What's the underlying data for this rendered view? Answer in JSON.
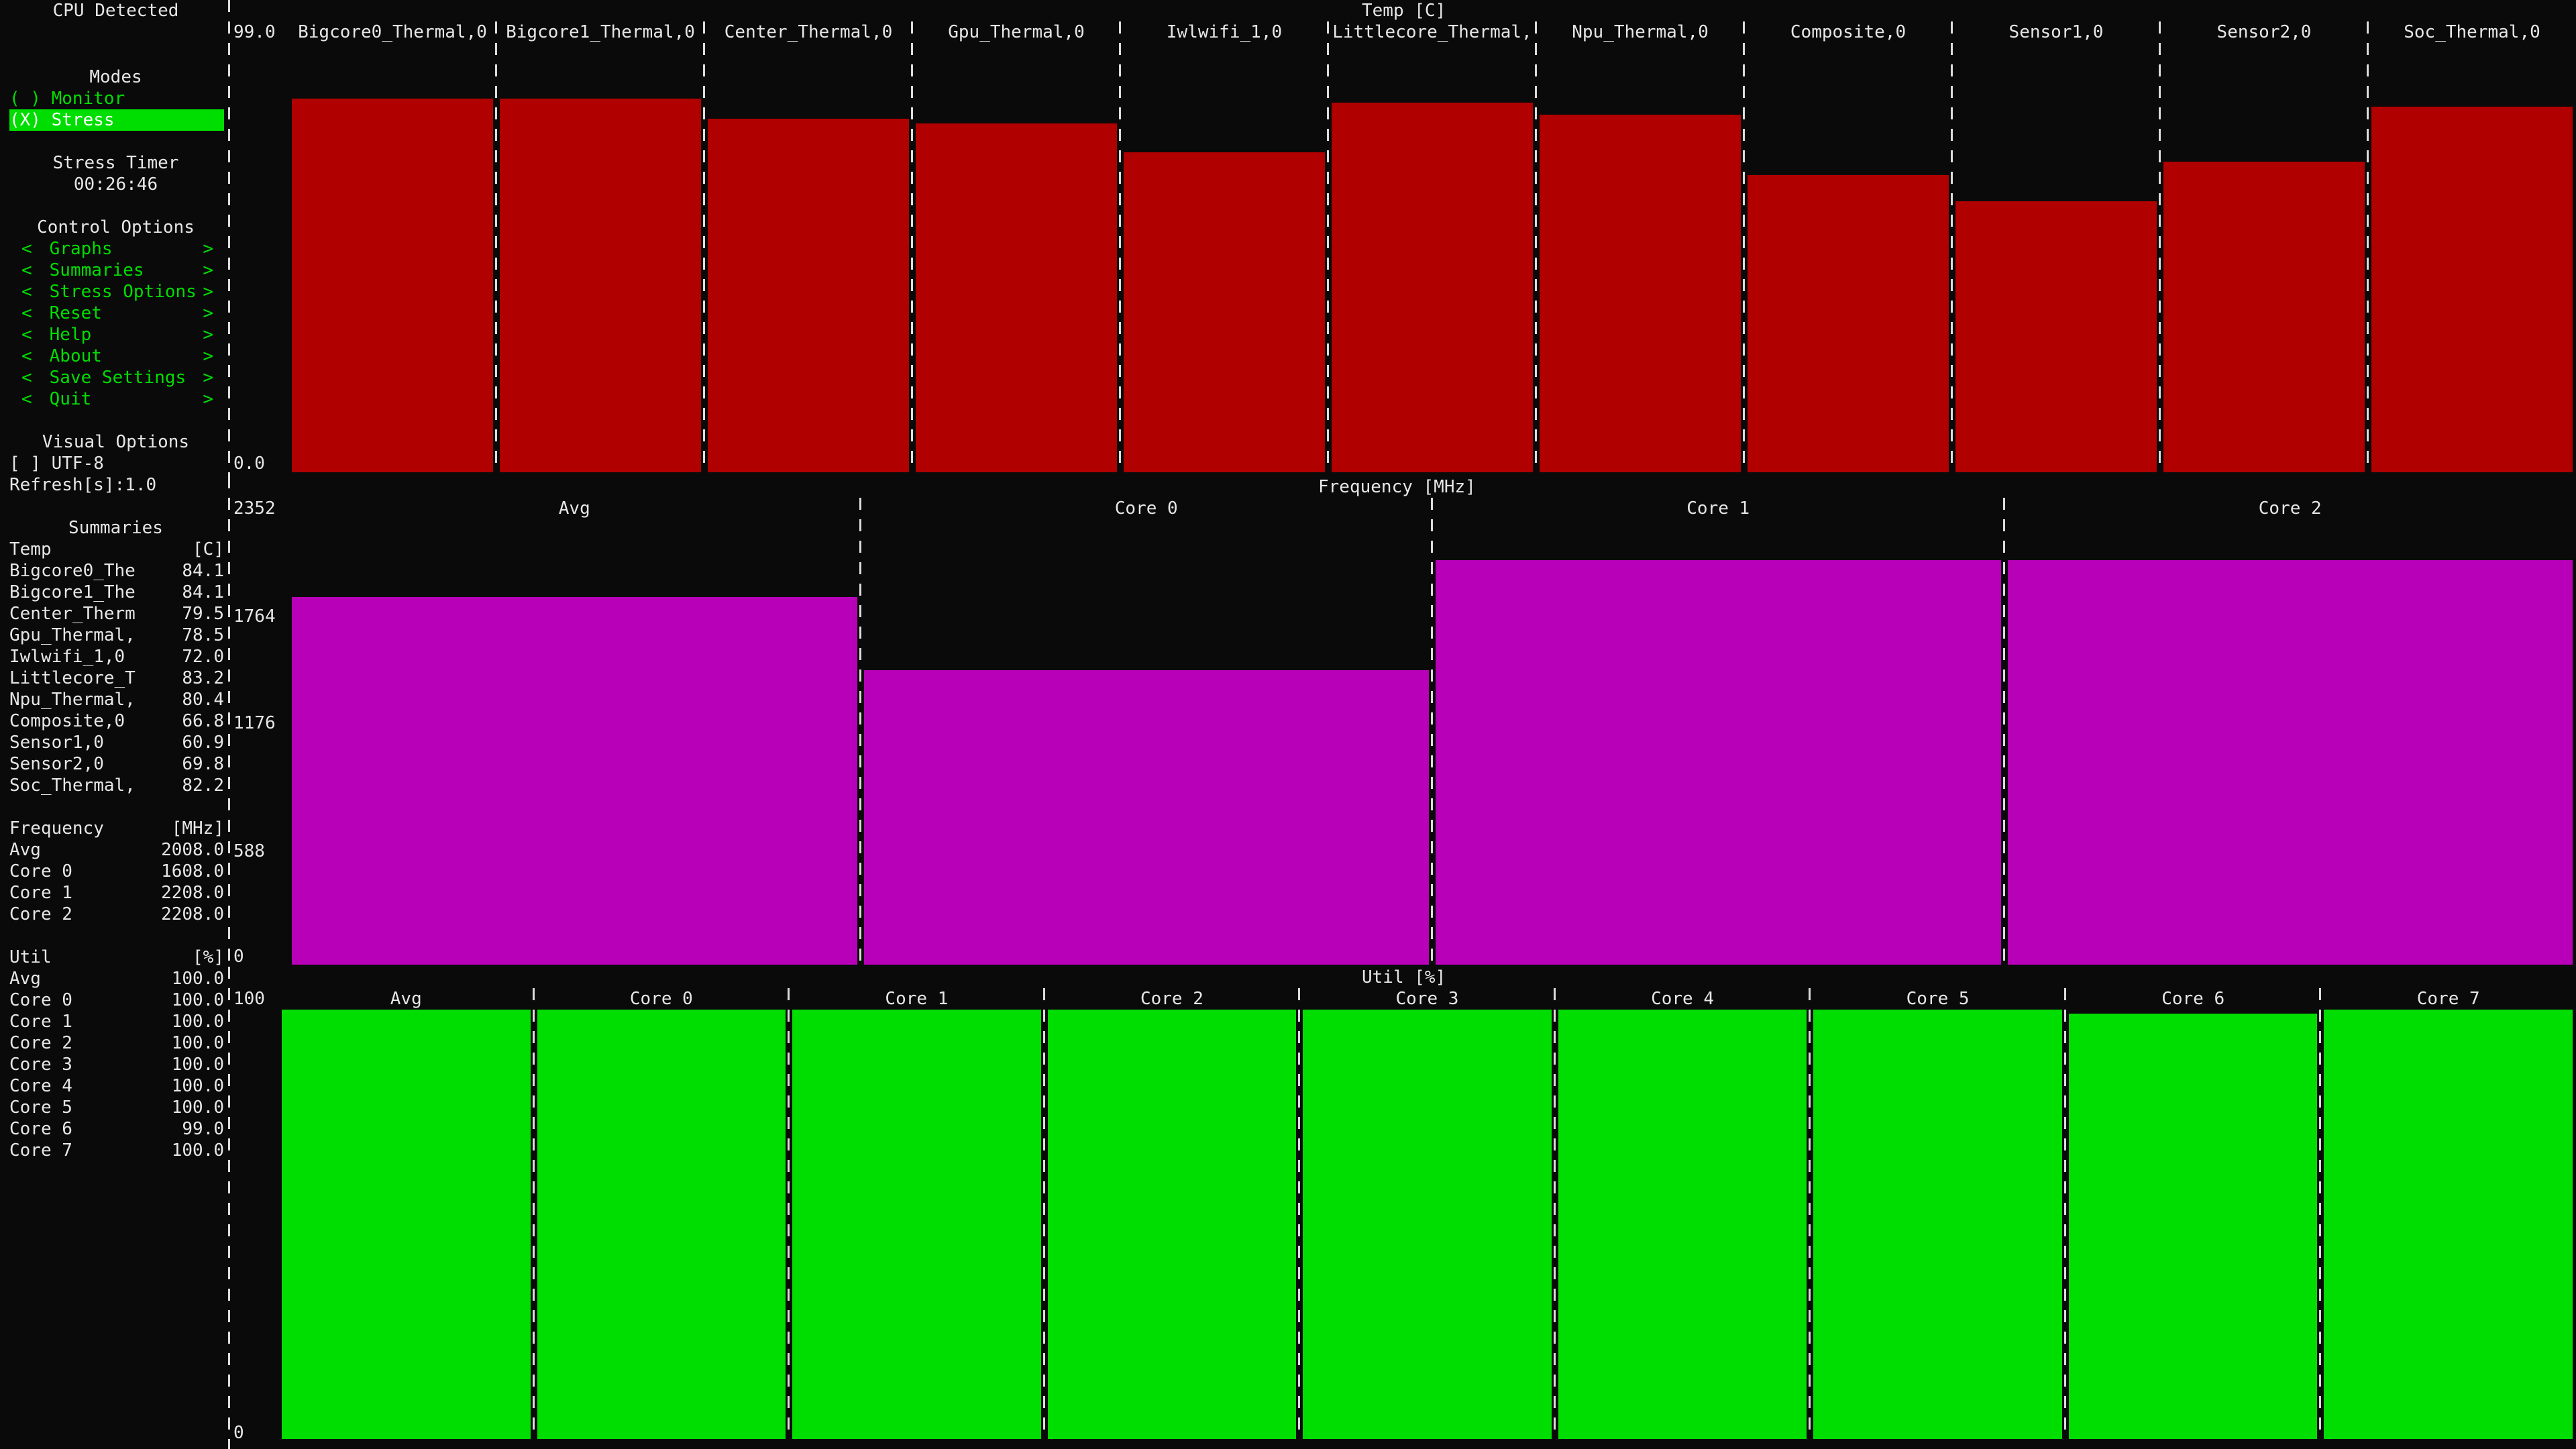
{
  "sidebar": {
    "cpu_detected": "CPU Detected",
    "modes_title": "Modes",
    "modes": [
      {
        "label": "( ) Monitor",
        "selected": false
      },
      {
        "label": "(X) Stress",
        "selected": true
      }
    ],
    "stress_timer_title": "Stress Timer",
    "stress_timer_value": "00:26:46",
    "control_title": "Control Options",
    "control_items": [
      "Graphs",
      "Summaries",
      "Stress Options",
      "Reset",
      "Help",
      "About",
      "Save Settings",
      "Quit"
    ],
    "menu_left": "<",
    "menu_right": ">",
    "visual_title": "Visual Options",
    "utf8": "[ ] UTF-8",
    "refresh": "Refresh[s]:1.0",
    "summaries_title": "Summaries",
    "temp_header": {
      "name": "Temp",
      "unit": "[C]"
    },
    "temp_rows": [
      {
        "name": "Bigcore0_The",
        "value": "84.1"
      },
      {
        "name": "Bigcore1_The",
        "value": "84.1"
      },
      {
        "name": "Center_Therm",
        "value": "79.5"
      },
      {
        "name": "Gpu_Thermal,",
        "value": "78.5"
      },
      {
        "name": "Iwlwifi_1,0",
        "value": "72.0"
      },
      {
        "name": "Littlecore_T",
        "value": "83.2"
      },
      {
        "name": "Npu_Thermal,",
        "value": "80.4"
      },
      {
        "name": "Composite,0",
        "value": "66.8"
      },
      {
        "name": "Sensor1,0",
        "value": "60.9"
      },
      {
        "name": "Sensor2,0",
        "value": "69.8"
      },
      {
        "name": "Soc_Thermal,",
        "value": "82.2"
      }
    ],
    "freq_header": {
      "name": "Frequency",
      "unit": "[MHz]"
    },
    "freq_rows": [
      {
        "name": "Avg",
        "value": "2008.0"
      },
      {
        "name": "Core 0",
        "value": "1608.0"
      },
      {
        "name": "Core 1",
        "value": "2208.0"
      },
      {
        "name": "Core 2",
        "value": "2208.0"
      }
    ],
    "util_header": {
      "name": "Util",
      "unit": "[%]"
    },
    "util_rows": [
      {
        "name": "Avg",
        "value": "100.0"
      },
      {
        "name": "Core 0",
        "value": "100.0"
      },
      {
        "name": "Core 1",
        "value": "100.0"
      },
      {
        "name": "Core 2",
        "value": "100.0"
      },
      {
        "name": "Core 3",
        "value": "100.0"
      },
      {
        "name": "Core 4",
        "value": "100.0"
      },
      {
        "name": "Core 5",
        "value": "100.0"
      },
      {
        "name": "Core 6",
        "value": "99.0"
      },
      {
        "name": "Core 7",
        "value": "100.0"
      }
    ]
  },
  "graphs": {
    "temp": {
      "title": "Temp [C]",
      "y_max_label": "99.0",
      "y_min_label": "0.0",
      "y_max": 99.0,
      "labels": [
        "Bigcore0_Thermal,0",
        "Bigcore1_Thermal,0",
        "Center_Thermal,0",
        "Gpu_Thermal,0",
        "Iwlwifi_1,0",
        "Littlecore_Thermal,",
        "Npu_Thermal,0",
        "Composite,0",
        "Sensor1,0",
        "Sensor2,0",
        "Soc_Thermal,0"
      ],
      "values": [
        84.1,
        84.1,
        79.5,
        78.5,
        72.0,
        83.2,
        80.4,
        66.8,
        60.9,
        69.8,
        82.2
      ],
      "color": "#b00000"
    },
    "freq": {
      "title": "Frequency [MHz]",
      "y_ticks": [
        "2352",
        "1764",
        "1176",
        "588",
        "0"
      ],
      "y_max": 2352,
      "labels": [
        "Avg",
        "Core 0",
        "Core 1",
        "Core 2"
      ],
      "values": [
        2008.0,
        1608.0,
        2208.0,
        2208.0
      ],
      "color": "#b800b8"
    },
    "util": {
      "title": "Util [%]",
      "y_max_label": "100",
      "y_min_label": "0",
      "y_max": 100,
      "labels": [
        "Avg",
        "Core 0",
        "Core 1",
        "Core 2",
        "Core 3",
        "Core 4",
        "Core 5",
        "Core 6",
        "Core 7"
      ],
      "values": [
        100.0,
        100.0,
        100.0,
        100.0,
        100.0,
        100.0,
        100.0,
        99.0,
        100.0
      ],
      "color": "#00dd00"
    }
  }
}
